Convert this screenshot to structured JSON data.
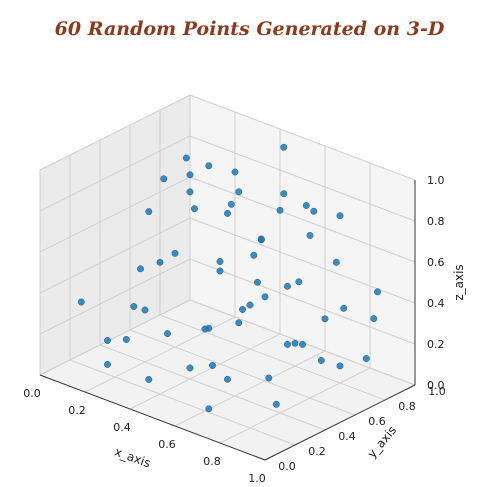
{
  "chart_data": {
    "type": "scatter",
    "title": "60 Random Points Generated on 3-D",
    "xlabel": "x_axis",
    "ylabel": "y_axis",
    "zlabel": "z_axis",
    "xlim": [
      0,
      1
    ],
    "ylim": [
      0,
      1
    ],
    "zlim": [
      0,
      1
    ],
    "x_ticks": [
      "0.0",
      "0.2",
      "0.4",
      "0.6",
      "0.8",
      "1.0"
    ],
    "y_ticks": [
      "0.0",
      "0.2",
      "0.4",
      "0.6",
      "0.8",
      "1.0"
    ],
    "z_ticks": [
      "0.0",
      "0.2",
      "0.4",
      "0.6",
      "0.8",
      "1.0"
    ],
    "grid": true,
    "point_color": "#1f77b4",
    "points": [
      [
        0.05,
        0.9,
        0.75
      ],
      [
        0.12,
        0.85,
        0.55
      ],
      [
        0.2,
        0.7,
        0.72
      ],
      [
        0.08,
        0.55,
        0.35
      ],
      [
        0.15,
        0.4,
        0.25
      ],
      [
        0.25,
        0.75,
        0.85
      ],
      [
        0.3,
        0.8,
        0.62
      ],
      [
        0.35,
        0.9,
        0.4
      ],
      [
        0.4,
        0.6,
        0.5
      ],
      [
        0.45,
        0.95,
        0.95
      ],
      [
        0.5,
        0.85,
        0.7
      ],
      [
        0.55,
        0.8,
        0.82
      ],
      [
        0.6,
        0.9,
        0.6
      ],
      [
        0.65,
        0.75,
        0.45
      ],
      [
        0.7,
        0.95,
        0.72
      ],
      [
        0.75,
        0.85,
        0.55
      ],
      [
        0.8,
        0.7,
        0.35
      ],
      [
        0.85,
        0.95,
        0.28
      ],
      [
        0.9,
        0.9,
        0.45
      ],
      [
        0.95,
        0.75,
        0.2
      ],
      [
        0.1,
        0.3,
        0.1
      ],
      [
        0.2,
        0.15,
        0.08
      ],
      [
        0.3,
        0.4,
        0.18
      ],
      [
        0.35,
        0.2,
        0.05
      ],
      [
        0.45,
        0.45,
        0.25
      ],
      [
        0.5,
        0.25,
        0.15
      ],
      [
        0.55,
        0.5,
        0.3
      ],
      [
        0.6,
        0.35,
        0.1
      ],
      [
        0.65,
        0.15,
        0.05
      ],
      [
        0.7,
        0.6,
        0.22
      ],
      [
        0.75,
        0.4,
        0.15
      ],
      [
        0.8,
        0.55,
        0.28
      ],
      [
        0.85,
        0.3,
        0.1
      ],
      [
        0.9,
        0.65,
        0.18
      ],
      [
        0.95,
        0.45,
        0.3
      ],
      [
        0.05,
        0.65,
        0.58
      ],
      [
        0.15,
        0.6,
        0.8
      ],
      [
        0.25,
        0.95,
        0.65
      ],
      [
        0.3,
        0.55,
        0.9
      ],
      [
        0.4,
        0.7,
        0.9
      ],
      [
        0.45,
        0.6,
        0.8
      ],
      [
        0.55,
        0.65,
        0.65
      ],
      [
        0.6,
        0.55,
        0.5
      ],
      [
        0.65,
        0.5,
        0.75
      ],
      [
        0.7,
        0.3,
        0.5
      ],
      [
        0.75,
        0.65,
        0.9
      ],
      [
        0.8,
        0.45,
        0.6
      ],
      [
        0.85,
        0.55,
        0.95
      ],
      [
        0.9,
        0.35,
        0.4
      ],
      [
        0.95,
        0.6,
        0.5
      ],
      [
        0.2,
        0.5,
        0.45
      ],
      [
        0.3,
        0.25,
        0.35
      ],
      [
        0.4,
        0.3,
        0.65
      ],
      [
        0.5,
        0.45,
        0.55
      ],
      [
        0.6,
        0.2,
        0.4
      ],
      [
        0.7,
        0.1,
        0.3
      ],
      [
        0.8,
        0.2,
        0.6
      ],
      [
        0.9,
        0.15,
        0.7
      ],
      [
        0.35,
        0.05,
        0.3
      ],
      [
        0.15,
        0.05,
        0.4
      ]
    ]
  }
}
